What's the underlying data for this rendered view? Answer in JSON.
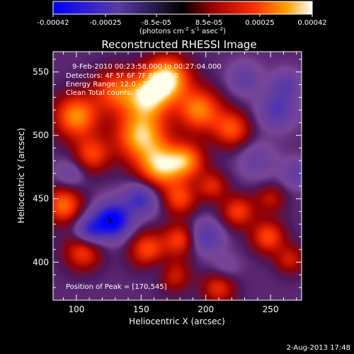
{
  "chart_data": {
    "type": "heatmap",
    "title": "Reconstructed RHESSI Image",
    "xlabel": "Heliocentric X (arcsec)",
    "ylabel": "Heliocentric Y (arcsec)",
    "xlim": [
      82,
      274
    ],
    "ylim": [
      370,
      566
    ],
    "x_ticks": [
      100,
      150,
      200,
      250
    ],
    "y_ticks": [
      400,
      450,
      500,
      550
    ],
    "colorbar": {
      "label_html": "(photons cm<tspan dy=\"-4\" font-size=\"7\">-2</tspan><tspan dy=\"4\"> s</tspan><tspan dy=\"-4\" font-size=\"7\">-1</tspan><tspan dy=\"4\"> asec</tspan><tspan dy=\"-4\" font-size=\"7\">-2</tspan><tspan dy=\"4\">)</tspan>",
      "tick_labels": [
        "-0.00042",
        "-0.00025",
        "-8.5e-05",
        "8.5e-05",
        "0.00025",
        "0.00042"
      ],
      "range": [
        -0.00042,
        0.00042
      ]
    },
    "annotations": {
      "time": "9-Feb-2010 00:23:58.000 to 00:27:04.000",
      "detectors": "Detectors: 4F 5F 6F 7F 8F, Att 0",
      "energy": "Energy Range: 12.0 - 25.0 keV",
      "clean": "Clean     Total counts: 1.75E+04",
      "peak": "Position of Peak = [170,545]"
    },
    "blobs": [
      {
        "x": 100,
        "y": 515,
        "v": 0.8,
        "s": 12
      },
      {
        "x": 130,
        "y": 535,
        "v": 0.6,
        "s": 12
      },
      {
        "x": 150,
        "y": 500,
        "v": 0.9,
        "s": 14
      },
      {
        "x": 165,
        "y": 475,
        "v": 0.85,
        "s": 12
      },
      {
        "x": 185,
        "y": 480,
        "v": 0.7,
        "s": 10
      },
      {
        "x": 170,
        "y": 545,
        "v": 1.0,
        "s": 12
      },
      {
        "x": 155,
        "y": 530,
        "v": 0.8,
        "s": 12
      },
      {
        "x": 195,
        "y": 520,
        "v": 0.75,
        "s": 12
      },
      {
        "x": 220,
        "y": 505,
        "v": 0.6,
        "s": 10
      },
      {
        "x": 112,
        "y": 485,
        "v": 0.55,
        "s": 10
      },
      {
        "x": 90,
        "y": 445,
        "v": 0.7,
        "s": 10
      },
      {
        "x": 180,
        "y": 450,
        "v": 0.55,
        "s": 9
      },
      {
        "x": 205,
        "y": 460,
        "v": 0.45,
        "s": 8
      },
      {
        "x": 155,
        "y": 410,
        "v": 0.6,
        "s": 10
      },
      {
        "x": 180,
        "y": 418,
        "v": 0.55,
        "s": 9
      },
      {
        "x": 225,
        "y": 440,
        "v": 0.55,
        "s": 9
      },
      {
        "x": 250,
        "y": 450,
        "v": 0.35,
        "s": 8
      },
      {
        "x": 248,
        "y": 420,
        "v": 0.6,
        "s": 9
      },
      {
        "x": 265,
        "y": 402,
        "v": 0.4,
        "s": 8
      },
      {
        "x": 105,
        "y": 408,
        "v": 0.55,
        "s": 10
      },
      {
        "x": 210,
        "y": 380,
        "v": 0.5,
        "s": 9
      },
      {
        "x": 175,
        "y": 390,
        "v": 0.45,
        "s": 9
      },
      {
        "x": 128,
        "y": 433,
        "v": -1.0,
        "s": 10
      },
      {
        "x": 110,
        "y": 425,
        "v": -0.6,
        "s": 8
      },
      {
        "x": 150,
        "y": 450,
        "v": -0.6,
        "s": 9
      },
      {
        "x": 200,
        "y": 420,
        "v": -0.5,
        "s": 9
      },
      {
        "x": 255,
        "y": 520,
        "v": -0.5,
        "s": 10
      },
      {
        "x": 262,
        "y": 540,
        "v": -0.4,
        "s": 8
      },
      {
        "x": 230,
        "y": 545,
        "v": -0.35,
        "s": 9
      },
      {
        "x": 240,
        "y": 480,
        "v": -0.3,
        "s": 10
      },
      {
        "x": 95,
        "y": 470,
        "v": -0.3,
        "s": 8
      },
      {
        "x": 165,
        "y": 395,
        "v": -0.2,
        "s": 8
      },
      {
        "x": 270,
        "y": 470,
        "v": -0.35,
        "s": 8
      },
      {
        "x": 215,
        "y": 395,
        "v": -0.2,
        "s": 8
      }
    ]
  },
  "footer": {
    "timestamp": "2-Aug-2013 17:48"
  }
}
